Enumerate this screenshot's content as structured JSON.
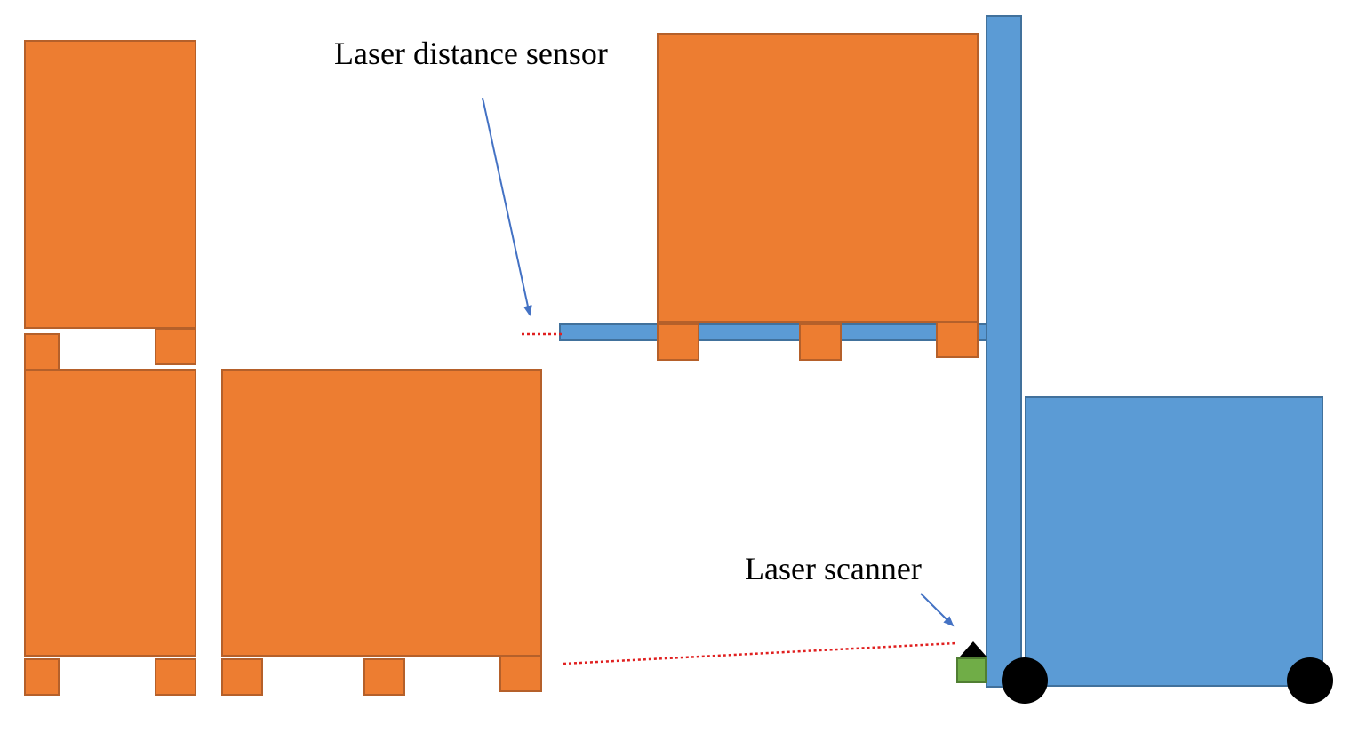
{
  "labels": {
    "laser_distance_sensor": "Laser distance sensor",
    "laser_scanner": "Laser scanner"
  },
  "colors": {
    "pallet_fill": "#ED7D31",
    "pallet_stroke": "#B5602A",
    "forklift_fill": "#5B9BD5",
    "forklift_stroke": "#41719C",
    "sensor_fill": "#70AD47",
    "sensor_stroke": "#507E32",
    "laser_beam": "#E02020",
    "pointer_arrow": "#4472C4",
    "wheel": "#000000"
  }
}
